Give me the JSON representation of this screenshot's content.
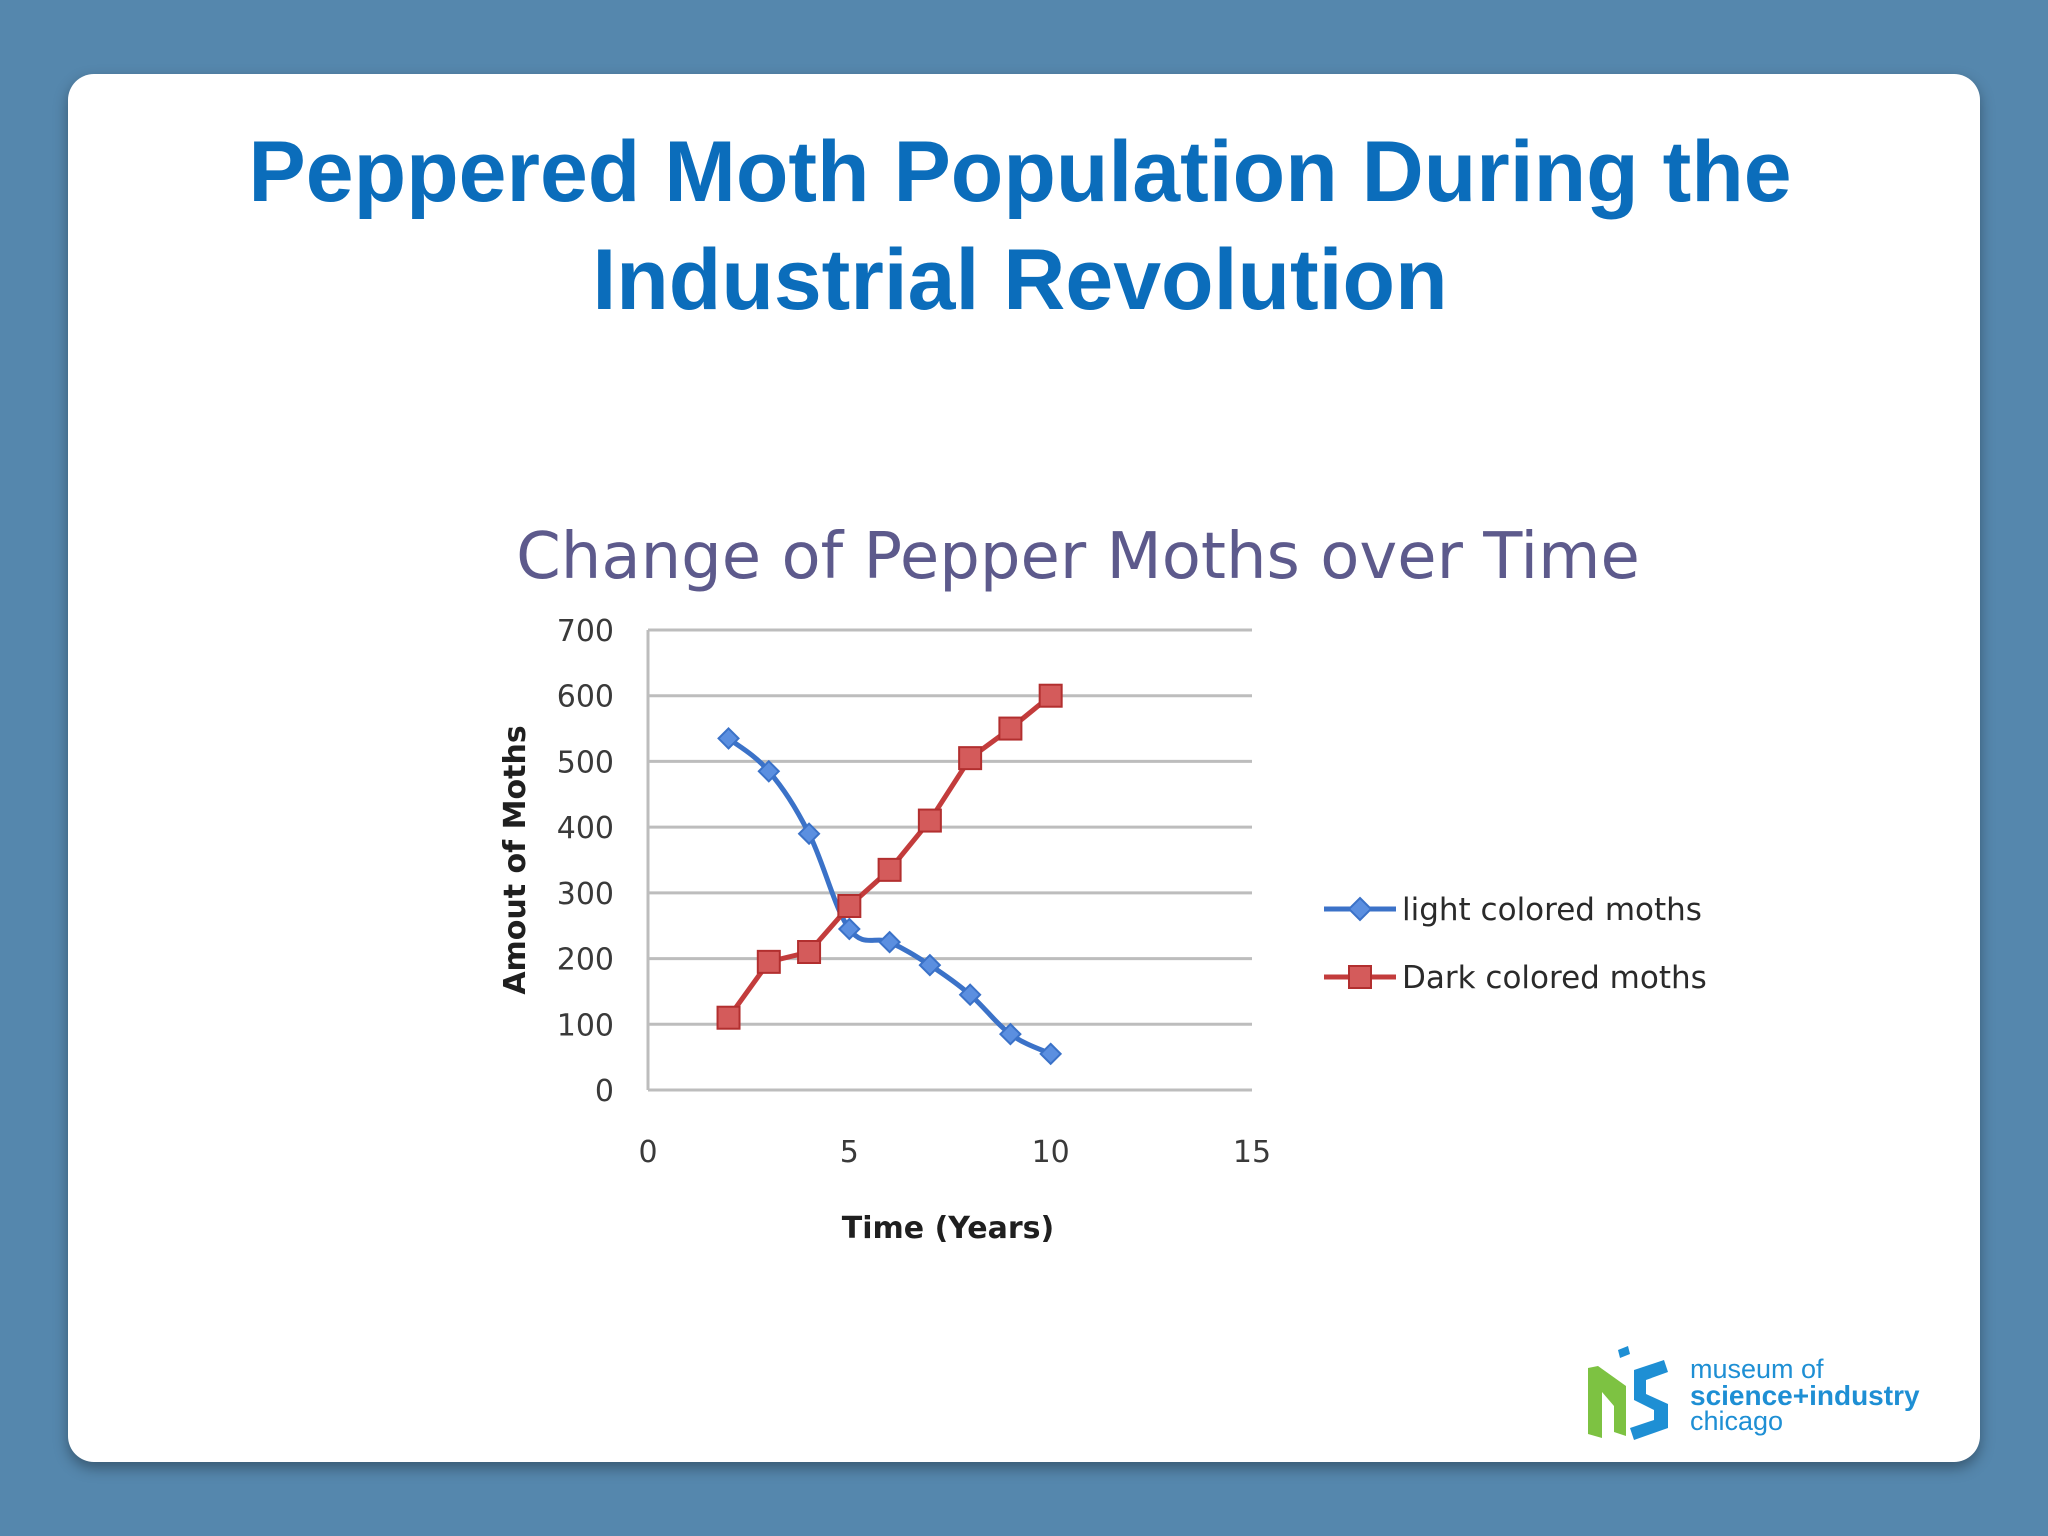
{
  "slide": {
    "title_lines": [
      "Peppered Moth Population During the",
      "Industrial Revolution"
    ]
  },
  "logo": {
    "mark_icon": "msi-logo-icon",
    "line1": "museum of",
    "line2": "science+industry",
    "line3": "chicago",
    "colors": {
      "green": "#7dc242",
      "blue": "#1e8fd4"
    }
  },
  "chart_data": {
    "type": "line",
    "title": "Change of Pepper Moths over Time",
    "xlabel": "Time (Years)",
    "ylabel": "Amout of Moths",
    "xlim": [
      0,
      15
    ],
    "ylim": [
      0,
      700
    ],
    "xticks": [
      0,
      5,
      10,
      15
    ],
    "yticks": [
      0,
      100,
      200,
      300,
      400,
      500,
      600,
      700
    ],
    "grid": "horizontal",
    "legend_position": "right",
    "series": [
      {
        "name": "light colored moths",
        "marker": "diamond",
        "color": "#3b72c8",
        "smooth": true,
        "x": [
          2,
          3,
          4,
          5,
          6,
          7,
          8,
          9,
          10
        ],
        "y": [
          535,
          485,
          390,
          245,
          225,
          190,
          145,
          85,
          55
        ]
      },
      {
        "name": "Dark colored moths",
        "marker": "square",
        "color": "#c33c3c",
        "smooth": false,
        "x": [
          2,
          3,
          4,
          5,
          6,
          7,
          8,
          9,
          10
        ],
        "y": [
          110,
          195,
          210,
          280,
          335,
          410,
          505,
          550,
          600
        ]
      }
    ]
  }
}
